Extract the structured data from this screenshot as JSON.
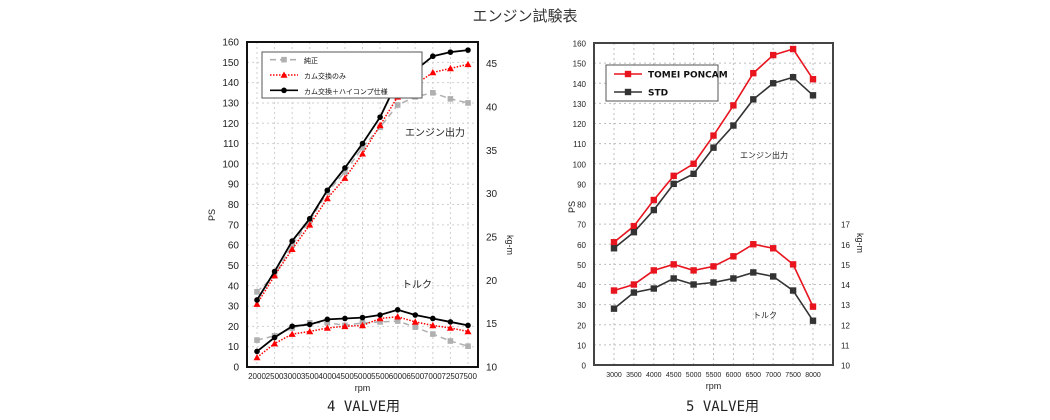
{
  "page": {
    "title": "エンジン試験表",
    "captions": [
      "4 VALVE用",
      "5 VALVE用"
    ]
  },
  "chart_data": [
    {
      "type": "line",
      "caption": "4 VALVE用",
      "xlabel": "rpm",
      "ylabel": "PS",
      "y2label": "kg-m",
      "x": [
        2000,
        2500,
        3000,
        3500,
        4000,
        4500,
        5000,
        5500,
        6000,
        6500,
        7000,
        7250,
        7500
      ],
      "ylim": [
        0,
        160
      ],
      "yticks": [
        0,
        10,
        20,
        30,
        40,
        50,
        60,
        70,
        80,
        90,
        100,
        110,
        120,
        130,
        140,
        150,
        160
      ],
      "y2lim": [
        10,
        47.5
      ],
      "y2ticks": [
        10,
        15,
        20,
        25,
        30,
        35,
        40,
        45
      ],
      "grid": true,
      "legend_position": "top-left",
      "annotations": [
        "エンジン出力",
        "トルク"
      ],
      "series": [
        {
          "name": "純正",
          "color": "#b0b0b0",
          "marker": "square",
          "dash": "dashed",
          "axis": "PS",
          "group": "power",
          "values": [
            37,
            45,
            60,
            72,
            86,
            96,
            108,
            118,
            129,
            133,
            135,
            132,
            130
          ]
        },
        {
          "name": "カム交換のみ",
          "color": "#ff0000",
          "marker": "triangle",
          "dash": "dotted",
          "axis": "PS",
          "group": "power",
          "values": [
            31,
            45,
            58,
            70,
            83,
            93,
            105,
            119,
            133,
            139,
            145,
            147,
            149
          ]
        },
        {
          "name": "カム交換＋ハイコンプ仕様",
          "color": "#000000",
          "marker": "circle",
          "dash": "solid",
          "axis": "PS",
          "group": "power",
          "values": [
            33,
            47,
            62,
            73,
            87,
            98,
            110,
            123,
            141,
            146,
            153,
            155,
            156
          ]
        },
        {
          "name": "純正",
          "color": "#b0b0b0",
          "marker": "square",
          "dash": "dashed",
          "axis": "kg-m",
          "group": "torque",
          "values": [
            13.1,
            13.6,
            14.5,
            15.1,
            15.1,
            14.8,
            15.1,
            15.2,
            15.3,
            14.6,
            13.8,
            13.0,
            12.4
          ]
        },
        {
          "name": "カム交換のみ",
          "color": "#ff0000",
          "marker": "triangle",
          "dash": "dotted",
          "axis": "kg-m",
          "group": "torque",
          "values": [
            11.1,
            12.7,
            13.8,
            14.1,
            14.5,
            14.7,
            14.8,
            15.6,
            15.8,
            15.2,
            14.8,
            14.5,
            14.1
          ]
        },
        {
          "name": "カム交換＋ハイコンプ仕様",
          "color": "#000000",
          "marker": "circle",
          "dash": "solid",
          "axis": "kg-m",
          "group": "torque",
          "values": [
            11.8,
            13.4,
            14.7,
            14.9,
            15.5,
            15.6,
            15.7,
            16.0,
            16.6,
            16.0,
            15.6,
            15.2,
            14.8
          ]
        }
      ]
    },
    {
      "type": "line",
      "caption": "5 VALVE用",
      "xlabel": "rpm",
      "ylabel": "PS",
      "y2label": "kg-m",
      "x": [
        3000,
        3500,
        4000,
        4500,
        5000,
        5500,
        6000,
        6500,
        7000,
        7500,
        8000
      ],
      "ylim": [
        0,
        160
      ],
      "yticks": [
        0,
        10,
        20,
        30,
        40,
        50,
        60,
        70,
        80,
        90,
        100,
        110,
        120,
        130,
        140,
        150,
        160
      ],
      "y2lim": [
        10,
        26
      ],
      "y2ticks": [
        10,
        11,
        12,
        13,
        14,
        15,
        16,
        17
      ],
      "grid": true,
      "legend_position": "top-left",
      "annotations": [
        "エンジン出力",
        "トルク"
      ],
      "series": [
        {
          "name": "TOMEI PONCAM",
          "color": "#e8141e",
          "marker": "square",
          "dash": "solid",
          "axis": "PS",
          "group": "power",
          "values": [
            61,
            69,
            82,
            94,
            100,
            114,
            129,
            145,
            154,
            157,
            142
          ]
        },
        {
          "name": "STD",
          "color": "#333333",
          "marker": "square",
          "dash": "solid",
          "axis": "PS",
          "group": "power",
          "values": [
            58,
            66,
            77,
            90,
            95,
            108,
            119,
            132,
            140,
            143,
            134
          ]
        },
        {
          "name": "TOMEI PONCAM",
          "color": "#e8141e",
          "marker": "square",
          "dash": "solid",
          "axis": "kg-m",
          "group": "torque",
          "values": [
            13.7,
            14.0,
            14.7,
            15.0,
            14.7,
            14.9,
            15.4,
            16.0,
            15.8,
            15.0,
            12.9
          ]
        },
        {
          "name": "STD",
          "color": "#333333",
          "marker": "square",
          "dash": "solid",
          "axis": "kg-m",
          "group": "torque",
          "values": [
            12.8,
            13.6,
            13.8,
            14.3,
            14.0,
            14.1,
            14.3,
            14.6,
            14.4,
            13.7,
            12.2
          ]
        }
      ]
    }
  ]
}
